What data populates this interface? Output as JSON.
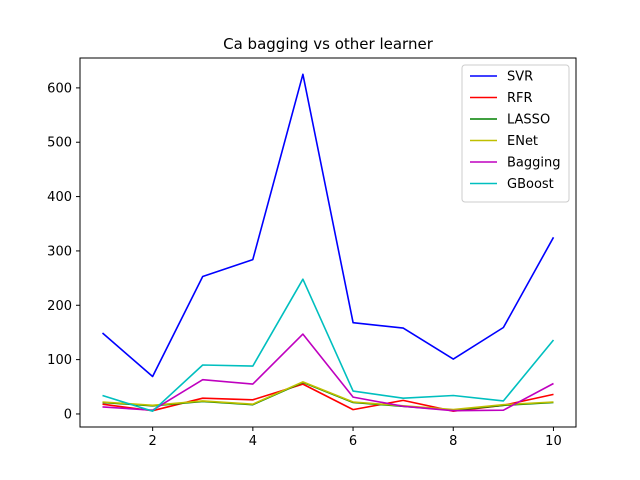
{
  "chart_data": {
    "type": "line",
    "title": "Ca bagging vs other learner",
    "xlabel": "",
    "ylabel": "",
    "x": [
      1,
      2,
      3,
      4,
      5,
      6,
      7,
      8,
      9,
      10
    ],
    "xlim": [
      0.55,
      10.45
    ],
    "ylim": [
      -24,
      655
    ],
    "xticks": [
      2,
      4,
      6,
      8,
      10
    ],
    "yticks": [
      0,
      100,
      200,
      300,
      400,
      500,
      600
    ],
    "grid": false,
    "legend_position": "top-right",
    "series": [
      {
        "name": "SVR",
        "color": "#0000ff",
        "values": [
          149,
          69,
          253,
          284,
          625,
          168,
          158,
          101,
          159,
          325
        ]
      },
      {
        "name": "RFR",
        "color": "#ff0000",
        "values": [
          18,
          6,
          29,
          26,
          55,
          8,
          25,
          5,
          16,
          36
        ]
      },
      {
        "name": "LASSO",
        "color": "#008000",
        "values": [
          21,
          15,
          23,
          17,
          58,
          21,
          14,
          7,
          16,
          21
        ]
      },
      {
        "name": "ENet",
        "color": "#bfbf00",
        "values": [
          22,
          16,
          24,
          18,
          59,
          22,
          15,
          8,
          17,
          22
        ]
      },
      {
        "name": "Bagging",
        "color": "#bf00bf",
        "values": [
          13,
          7,
          63,
          55,
          147,
          31,
          14,
          6,
          7,
          56
        ]
      },
      {
        "name": "GBoost",
        "color": "#00bfbf",
        "values": [
          34,
          5,
          90,
          88,
          248,
          42,
          29,
          34,
          24,
          136
        ]
      }
    ]
  }
}
